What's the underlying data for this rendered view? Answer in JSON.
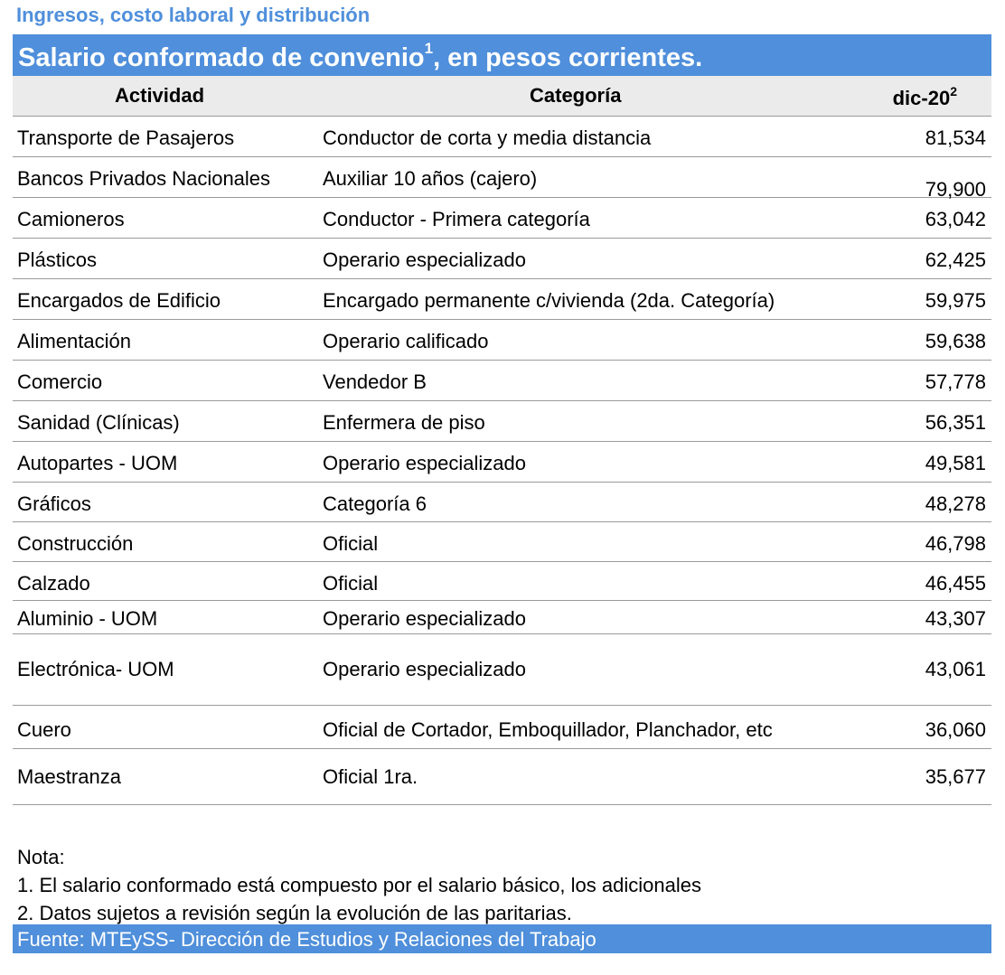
{
  "section_title": "Ingresos, costo laboral y distribución",
  "table_title": "Salario conformado de convenio",
  "table_title_sup": "1",
  "table_title_suffix": ", en pesos corrientes.",
  "headers": {
    "actividad": "Actividad",
    "categoria": "Categoría",
    "periodo": "dic-20",
    "periodo_sup": "2"
  },
  "rows": [
    {
      "actividad": "Transporte de Pasajeros",
      "categoria": "Conductor de corta y media distancia",
      "valor": "81,534"
    },
    {
      "actividad": "Bancos Privados Nacionales",
      "categoria": "Auxiliar 10 años (cajero)",
      "valor": "79,900"
    },
    {
      "actividad": "Camioneros",
      "categoria": "Conductor - Primera categoría",
      "valor": "63,042"
    },
    {
      "actividad": "Plásticos",
      "categoria": "Operario especializado",
      "valor": "62,425"
    },
    {
      "actividad": "Encargados de Edificio",
      "categoria": "Encargado permanente c/vivienda (2da. Categoría)",
      "valor": "59,975"
    },
    {
      "actividad": "Alimentación",
      "categoria": "Operario calificado",
      "valor": "59,638"
    },
    {
      "actividad": "Comercio",
      "categoria": "Vendedor B",
      "valor": "57,778"
    },
    {
      "actividad": "Sanidad (Clínicas)",
      "categoria": "Enfermera de piso",
      "valor": "56,351"
    },
    {
      "actividad": "Autopartes - UOM",
      "categoria": "Operario especializado",
      "valor": "49,581"
    },
    {
      "actividad": "Gráficos",
      "categoria": "Categoría 6",
      "valor": "48,278"
    },
    {
      "actividad": "Construcción",
      "categoria": "Oficial",
      "valor": "46,798"
    },
    {
      "actividad": "Calzado",
      "categoria": "Oficial",
      "valor": "46,455"
    },
    {
      "actividad": "Aluminio - UOM",
      "categoria": "Operario especializado",
      "valor": "43,307"
    },
    {
      "actividad": "Electrónica- UOM",
      "categoria": "Operario especializado",
      "valor": "43,061"
    },
    {
      "actividad": "Cuero",
      "categoria": "Oficial de Cortador, Emboquillador, Planchador, etc",
      "valor": "36,060"
    },
    {
      "actividad": "Maestranza",
      "categoria": "Oficial 1ra.",
      "valor": "35,677"
    }
  ],
  "notes": {
    "heading": "Nota:",
    "items": [
      "1. El salario conformado está compuesto por el salario básico, los adicionales",
      "2. Datos sujetos a revisión según la evolución de las paritarias."
    ]
  },
  "source": "Fuente: MTEySS- Dirección de Estudios y Relaciones del Trabajo",
  "colors": {
    "accent": "#4f8fdb",
    "header_bg": "#ebebeb"
  }
}
